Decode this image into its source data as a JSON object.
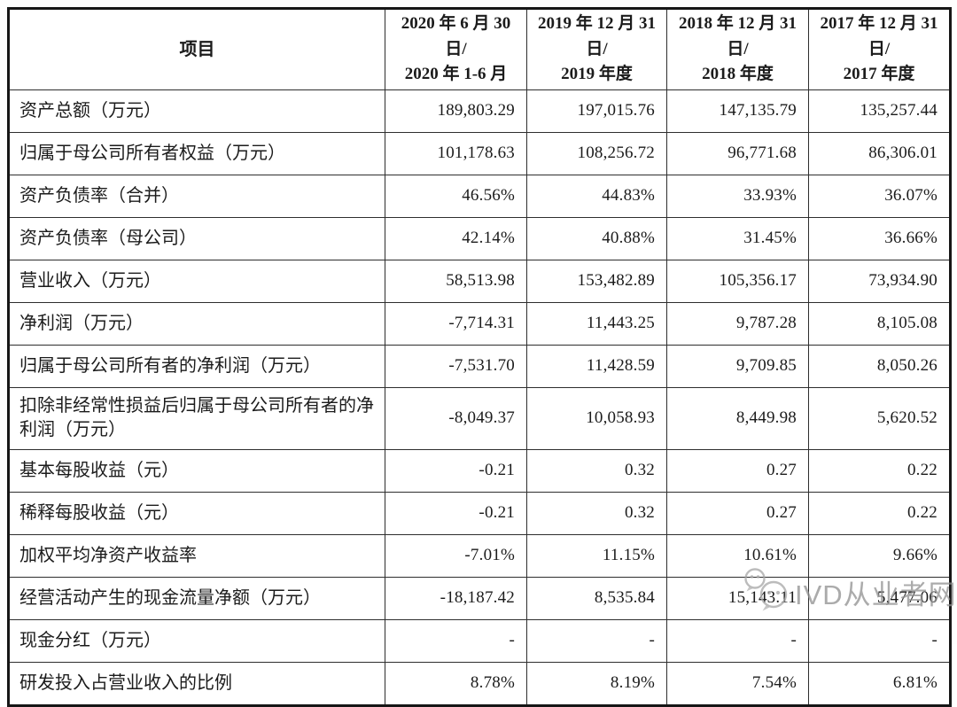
{
  "table": {
    "header": {
      "item": "项目",
      "periods": [
        {
          "line1": "2020 年 6 月 30 日/",
          "line2": "2020 年 1-6 月"
        },
        {
          "line1": "2019 年 12 月 31 日/",
          "line2": "2019 年度"
        },
        {
          "line1": "2018 年 12 月 31 日/",
          "line2": "2018 年度"
        },
        {
          "line1": "2017 年 12 月 31 日/",
          "line2": "2017 年度"
        }
      ]
    },
    "rows": [
      {
        "label": "资产总额（万元）",
        "values": [
          "189,803.29",
          "197,015.76",
          "147,135.79",
          "135,257.44"
        ],
        "tall": false
      },
      {
        "label": "归属于母公司所有者权益（万元）",
        "values": [
          "101,178.63",
          "108,256.72",
          "96,771.68",
          "86,306.01"
        ],
        "tall": false
      },
      {
        "label": "资产负债率（合并）",
        "values": [
          "46.56%",
          "44.83%",
          "33.93%",
          "36.07%"
        ],
        "tall": false
      },
      {
        "label": "资产负债率（母公司）",
        "values": [
          "42.14%",
          "40.88%",
          "31.45%",
          "36.66%"
        ],
        "tall": false
      },
      {
        "label": "营业收入（万元）",
        "values": [
          "58,513.98",
          "153,482.89",
          "105,356.17",
          "73,934.90"
        ],
        "tall": false
      },
      {
        "label": "净利润（万元）",
        "values": [
          "-7,714.31",
          "11,443.25",
          "9,787.28",
          "8,105.08"
        ],
        "tall": false
      },
      {
        "label": "归属于母公司所有者的净利润（万元）",
        "values": [
          "-7,531.70",
          "11,428.59",
          "9,709.85",
          "8,050.26"
        ],
        "tall": false
      },
      {
        "label": "扣除非经常性损益后归属于母公司所有者的净利润（万元）",
        "values": [
          "-8,049.37",
          "10,058.93",
          "8,449.98",
          "5,620.52"
        ],
        "tall": true
      },
      {
        "label": "基本每股收益（元）",
        "values": [
          "-0.21",
          "0.32",
          "0.27",
          "0.22"
        ],
        "tall": false
      },
      {
        "label": "稀释每股收益（元）",
        "values": [
          "-0.21",
          "0.32",
          "0.27",
          "0.22"
        ],
        "tall": false
      },
      {
        "label": "加权平均净资产收益率",
        "values": [
          "-7.01%",
          "11.15%",
          "10.61%",
          "9.66%"
        ],
        "tall": false
      },
      {
        "label": "经营活动产生的现金流量净额（万元）",
        "values": [
          "-18,187.42",
          "8,535.84",
          "15,143.11",
          "5,477.06"
        ],
        "tall": false
      },
      {
        "label": "现金分红（万元）",
        "values": [
          "-",
          "-",
          "-",
          "-"
        ],
        "tall": false
      },
      {
        "label": "研发投入占营业收入的比例",
        "values": [
          "8.78%",
          "8.19%",
          "7.54%",
          "6.81%"
        ],
        "tall": false
      }
    ]
  },
  "watermark": {
    "text": "IVD从业者网",
    "icon": "chat-bubbles-icon",
    "color": "#8f8f8f"
  },
  "colors": {
    "table_border": "#161616",
    "cell_border": "#2e2e2e",
    "text": "#1b1b1b",
    "background": "#ffffff"
  }
}
